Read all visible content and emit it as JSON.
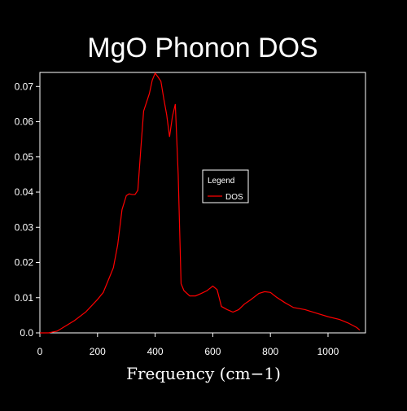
{
  "chart_data": {
    "type": "line",
    "title": "MgO Phonon DOS",
    "xlabel": "Frequency (cm−1)",
    "ylabel": "",
    "xlim": [
      0,
      1130
    ],
    "ylim": [
      0,
      0.074
    ],
    "x_ticks": [
      "0",
      "200",
      "400",
      "600",
      "800",
      "1000"
    ],
    "x_tick_values": [
      0,
      200,
      400,
      600,
      800,
      1000
    ],
    "y_ticks": [
      "0.0",
      "0.01",
      "0.02",
      "0.03",
      "0.04",
      "0.05",
      "0.06",
      "0.07"
    ],
    "y_tick_values": [
      0,
      0.01,
      0.02,
      0.03,
      0.04,
      0.05,
      0.06,
      0.07
    ],
    "grid": false,
    "legend": {
      "title": "Legend",
      "placement": "center-right",
      "entries": [
        {
          "name": "DOS",
          "color": "#ff0000"
        }
      ]
    },
    "colors": {
      "background": "#000000",
      "foreground": "#ffffff",
      "series": "#ff0000"
    },
    "series": [
      {
        "name": "DOS",
        "x": [
          0,
          30,
          60,
          90,
          120,
          160,
          200,
          220,
          240,
          255,
          270,
          285,
          300,
          310,
          320,
          330,
          340,
          350,
          360,
          370,
          380,
          390,
          400,
          410,
          420,
          430,
          440,
          450,
          460,
          470,
          480,
          490,
          500,
          520,
          540,
          560,
          580,
          600,
          615,
          630,
          650,
          670,
          690,
          710,
          730,
          760,
          780,
          800,
          820,
          850,
          880,
          920,
          960,
          1000,
          1040,
          1070,
          1100,
          1110
        ],
        "values": [
          0,
          0,
          0.0005,
          0.002,
          0.0035,
          0.006,
          0.0095,
          0.0115,
          0.0155,
          0.0185,
          0.025,
          0.035,
          0.039,
          0.0395,
          0.0393,
          0.0393,
          0.0405,
          0.052,
          0.063,
          0.0655,
          0.068,
          0.0718,
          0.0738,
          0.0727,
          0.0715,
          0.0665,
          0.062,
          0.0557,
          0.0615,
          0.065,
          0.045,
          0.014,
          0.012,
          0.0105,
          0.0105,
          0.0112,
          0.012,
          0.0133,
          0.0123,
          0.0075,
          0.0066,
          0.0059,
          0.0066,
          0.0082,
          0.0093,
          0.0112,
          0.0117,
          0.0115,
          0.0102,
          0.0086,
          0.0072,
          0.0066,
          0.0056,
          0.0046,
          0.0038,
          0.0028,
          0.0015,
          0.0008
        ]
      }
    ]
  }
}
